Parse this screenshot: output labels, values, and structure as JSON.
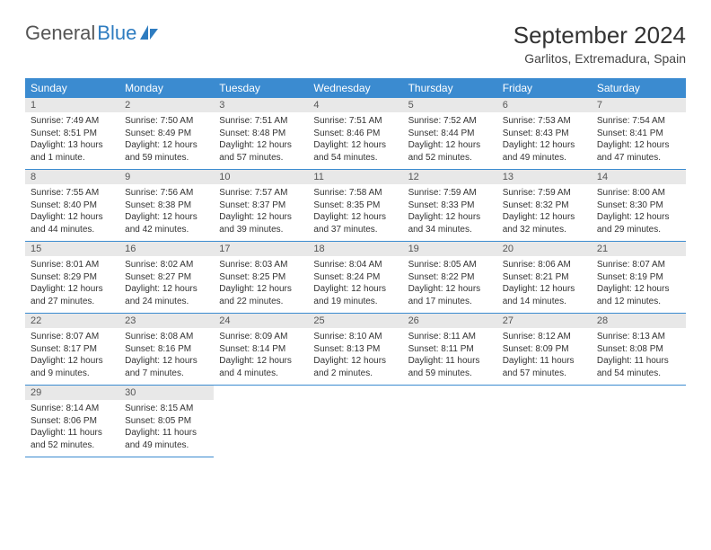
{
  "logo": {
    "text1": "General",
    "text2": "Blue"
  },
  "title": "September 2024",
  "subtitle": "Garlitos, Extremadura, Spain",
  "colors": {
    "header_bg": "#3b8bd0",
    "header_text": "#ffffff",
    "daynum_bg": "#e8e8e8",
    "border": "#3b8bd0",
    "logo_blue": "#2e7cc0"
  },
  "weekdays": [
    "Sunday",
    "Monday",
    "Tuesday",
    "Wednesday",
    "Thursday",
    "Friday",
    "Saturday"
  ],
  "days": [
    {
      "n": 1,
      "sunrise": "7:49 AM",
      "sunset": "8:51 PM",
      "daylight": "13 hours and 1 minute."
    },
    {
      "n": 2,
      "sunrise": "7:50 AM",
      "sunset": "8:49 PM",
      "daylight": "12 hours and 59 minutes."
    },
    {
      "n": 3,
      "sunrise": "7:51 AM",
      "sunset": "8:48 PM",
      "daylight": "12 hours and 57 minutes."
    },
    {
      "n": 4,
      "sunrise": "7:51 AM",
      "sunset": "8:46 PM",
      "daylight": "12 hours and 54 minutes."
    },
    {
      "n": 5,
      "sunrise": "7:52 AM",
      "sunset": "8:44 PM",
      "daylight": "12 hours and 52 minutes."
    },
    {
      "n": 6,
      "sunrise": "7:53 AM",
      "sunset": "8:43 PM",
      "daylight": "12 hours and 49 minutes."
    },
    {
      "n": 7,
      "sunrise": "7:54 AM",
      "sunset": "8:41 PM",
      "daylight": "12 hours and 47 minutes."
    },
    {
      "n": 8,
      "sunrise": "7:55 AM",
      "sunset": "8:40 PM",
      "daylight": "12 hours and 44 minutes."
    },
    {
      "n": 9,
      "sunrise": "7:56 AM",
      "sunset": "8:38 PM",
      "daylight": "12 hours and 42 minutes."
    },
    {
      "n": 10,
      "sunrise": "7:57 AM",
      "sunset": "8:37 PM",
      "daylight": "12 hours and 39 minutes."
    },
    {
      "n": 11,
      "sunrise": "7:58 AM",
      "sunset": "8:35 PM",
      "daylight": "12 hours and 37 minutes."
    },
    {
      "n": 12,
      "sunrise": "7:59 AM",
      "sunset": "8:33 PM",
      "daylight": "12 hours and 34 minutes."
    },
    {
      "n": 13,
      "sunrise": "7:59 AM",
      "sunset": "8:32 PM",
      "daylight": "12 hours and 32 minutes."
    },
    {
      "n": 14,
      "sunrise": "8:00 AM",
      "sunset": "8:30 PM",
      "daylight": "12 hours and 29 minutes."
    },
    {
      "n": 15,
      "sunrise": "8:01 AM",
      "sunset": "8:29 PM",
      "daylight": "12 hours and 27 minutes."
    },
    {
      "n": 16,
      "sunrise": "8:02 AM",
      "sunset": "8:27 PM",
      "daylight": "12 hours and 24 minutes."
    },
    {
      "n": 17,
      "sunrise": "8:03 AM",
      "sunset": "8:25 PM",
      "daylight": "12 hours and 22 minutes."
    },
    {
      "n": 18,
      "sunrise": "8:04 AM",
      "sunset": "8:24 PM",
      "daylight": "12 hours and 19 minutes."
    },
    {
      "n": 19,
      "sunrise": "8:05 AM",
      "sunset": "8:22 PM",
      "daylight": "12 hours and 17 minutes."
    },
    {
      "n": 20,
      "sunrise": "8:06 AM",
      "sunset": "8:21 PM",
      "daylight": "12 hours and 14 minutes."
    },
    {
      "n": 21,
      "sunrise": "8:07 AM",
      "sunset": "8:19 PM",
      "daylight": "12 hours and 12 minutes."
    },
    {
      "n": 22,
      "sunrise": "8:07 AM",
      "sunset": "8:17 PM",
      "daylight": "12 hours and 9 minutes."
    },
    {
      "n": 23,
      "sunrise": "8:08 AM",
      "sunset": "8:16 PM",
      "daylight": "12 hours and 7 minutes."
    },
    {
      "n": 24,
      "sunrise": "8:09 AM",
      "sunset": "8:14 PM",
      "daylight": "12 hours and 4 minutes."
    },
    {
      "n": 25,
      "sunrise": "8:10 AM",
      "sunset": "8:13 PM",
      "daylight": "12 hours and 2 minutes."
    },
    {
      "n": 26,
      "sunrise": "8:11 AM",
      "sunset": "8:11 PM",
      "daylight": "11 hours and 59 minutes."
    },
    {
      "n": 27,
      "sunrise": "8:12 AM",
      "sunset": "8:09 PM",
      "daylight": "11 hours and 57 minutes."
    },
    {
      "n": 28,
      "sunrise": "8:13 AM",
      "sunset": "8:08 PM",
      "daylight": "11 hours and 54 minutes."
    },
    {
      "n": 29,
      "sunrise": "8:14 AM",
      "sunset": "8:06 PM",
      "daylight": "11 hours and 52 minutes."
    },
    {
      "n": 30,
      "sunrise": "8:15 AM",
      "sunset": "8:05 PM",
      "daylight": "11 hours and 49 minutes."
    }
  ],
  "labels": {
    "sunrise": "Sunrise:",
    "sunset": "Sunset:",
    "daylight": "Daylight:"
  }
}
